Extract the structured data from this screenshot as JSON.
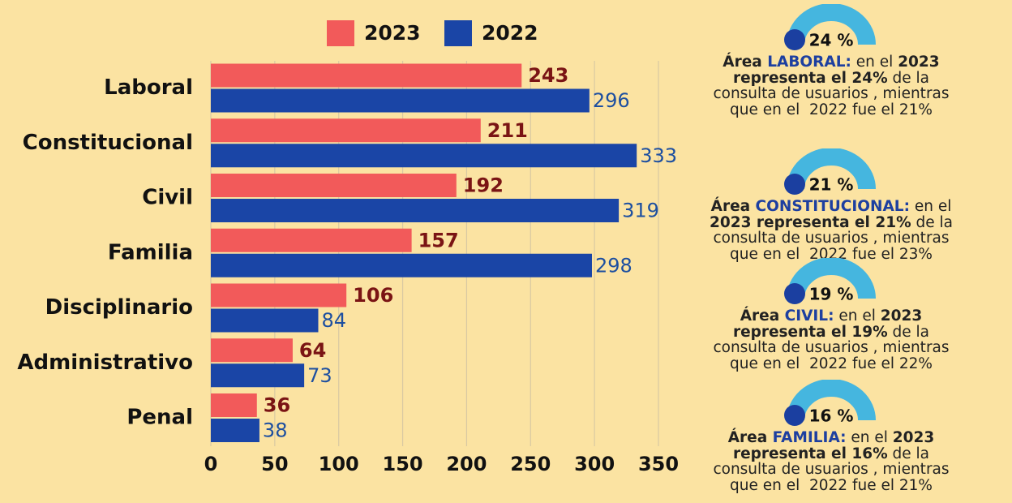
{
  "chart_data": {
    "type": "hbar",
    "categories": [
      "Laboral",
      "Constitucional",
      "Civil",
      "Familia",
      "Disciplinario",
      "Administrativo",
      "Penal"
    ],
    "series": [
      {
        "name": "2023",
        "color": "#f25a5a",
        "label_color": "#7a1414",
        "values": [
          243,
          211,
          192,
          157,
          106,
          64,
          36
        ]
      },
      {
        "name": "2022",
        "color": "#1a45a6",
        "label_color": "#1d4fa0",
        "values": [
          296,
          333,
          319,
          298,
          84,
          73,
          38
        ]
      }
    ],
    "xlim": [
      0,
      350
    ],
    "xticks": [
      0,
      50,
      100,
      150,
      200,
      250,
      300,
      350
    ],
    "grid": true
  },
  "panels": [
    {
      "percent": "24 %",
      "lines": [
        [
          {
            "text": "Área ",
            "style": "bold"
          },
          {
            "text": "LABORAL:",
            "style": "highlight"
          },
          {
            "text": " en el ",
            "style": "normal"
          },
          {
            "text": "2023",
            "style": "bold"
          }
        ],
        [
          {
            "text": "representa el 24%",
            "style": "bold"
          },
          {
            "text": " de la",
            "style": "normal"
          }
        ],
        [
          {
            "text": "consulta de usuarios , mientras",
            "style": "normal"
          }
        ],
        [
          {
            "text": "que en el  2022 fue el 21%",
            "style": "normal"
          }
        ]
      ]
    },
    {
      "percent": "21 %",
      "lines": [
        [
          {
            "text": "Área ",
            "style": "bold"
          },
          {
            "text": "CONSTITUCIONAL:",
            "style": "highlight"
          },
          {
            "text": " en el",
            "style": "normal"
          }
        ],
        [
          {
            "text": "2023 representa el 21%",
            "style": "bold"
          },
          {
            "text": " de la",
            "style": "normal"
          }
        ],
        [
          {
            "text": "consulta de usuarios , mientras",
            "style": "normal"
          }
        ],
        [
          {
            "text": "que en el  2022 fue el 23%",
            "style": "normal"
          }
        ]
      ]
    },
    {
      "percent": "19 %",
      "lines": [
        [
          {
            "text": "Área ",
            "style": "bold"
          },
          {
            "text": "CIVIL:",
            "style": "highlight"
          },
          {
            "text": " en el ",
            "style": "normal"
          },
          {
            "text": "2023",
            "style": "bold"
          }
        ],
        [
          {
            "text": "representa el 19%",
            "style": "bold"
          },
          {
            "text": " de la",
            "style": "normal"
          }
        ],
        [
          {
            "text": "consulta de usuarios , mientras",
            "style": "normal"
          }
        ],
        [
          {
            "text": "que en el  2022 fue el 22%",
            "style": "normal"
          }
        ]
      ]
    },
    {
      "percent": "16 %",
      "lines": [
        [
          {
            "text": "Área ",
            "style": "bold"
          },
          {
            "text": "FAMILIA:",
            "style": "highlight"
          },
          {
            "text": " en el ",
            "style": "normal"
          },
          {
            "text": "2023",
            "style": "bold"
          }
        ],
        [
          {
            "text": "representa el 16%",
            "style": "bold"
          },
          {
            "text": " de la",
            "style": "normal"
          }
        ],
        [
          {
            "text": "consulta de usuarios , mientras",
            "style": "normal"
          }
        ],
        [
          {
            "text": "que en el  2022 fue el 21%",
            "style": "normal"
          }
        ]
      ]
    }
  ]
}
